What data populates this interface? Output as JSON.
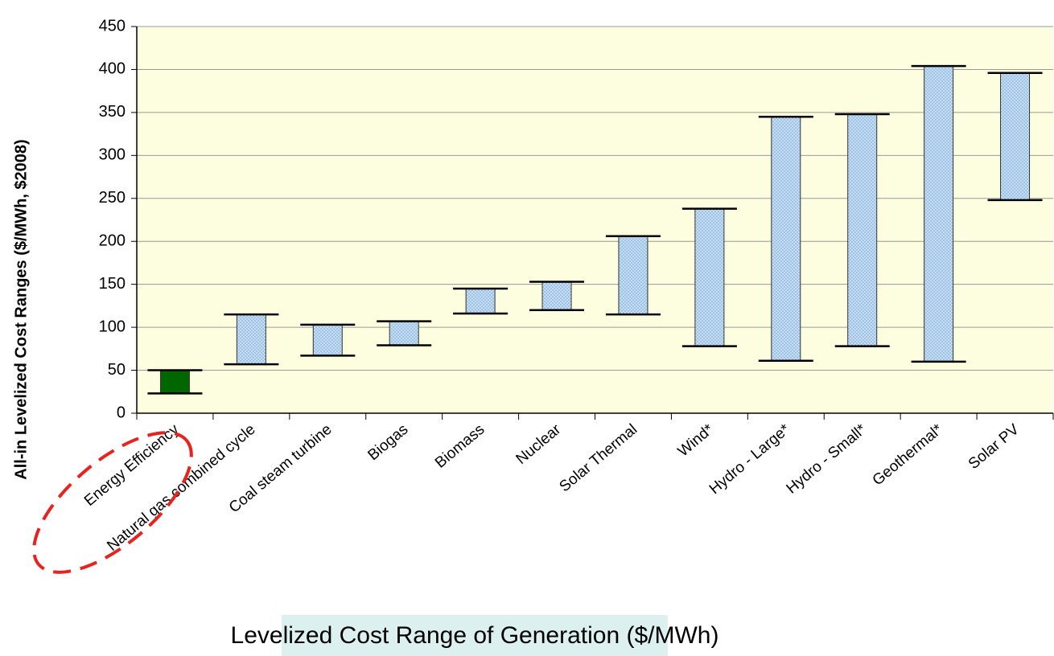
{
  "chart_data": {
    "type": "floating_bar",
    "y_label": "All-in Levelized Cost Ranges ($/MWh, $2008)",
    "annotation": "Levelized Cost Range of Generation ($/MWh)",
    "categories": [
      "Energy Efficiency",
      "Natural gas combined cycle",
      "Coal steam turbine",
      "Biogas",
      "Biomass",
      "Nuclear",
      "Solar Thermal",
      "Wind*",
      "Hydro - Large*",
      "Hydro - Small*",
      "Geothermal*",
      "Solar PV"
    ],
    "low": [
      23,
      57,
      67,
      79,
      116,
      120,
      115,
      78,
      61,
      78,
      60,
      248
    ],
    "high": [
      50,
      115,
      103,
      107,
      145,
      153,
      206,
      238,
      345,
      348,
      404,
      396
    ],
    "colors": [
      "#006600",
      "#9cc3e5",
      "#9cc3e5",
      "#9cc3e5",
      "#9cc3e5",
      "#9cc3e5",
      "#9cc3e5",
      "#9cc3e5",
      "#9cc3e5",
      "#9cc3e5",
      "#9cc3e5",
      "#9cc3e5"
    ],
    "ylim": [
      0,
      450
    ],
    "yticks": [
      0,
      50,
      100,
      150,
      200,
      250,
      300,
      350,
      400,
      450
    ],
    "grid": true
  }
}
